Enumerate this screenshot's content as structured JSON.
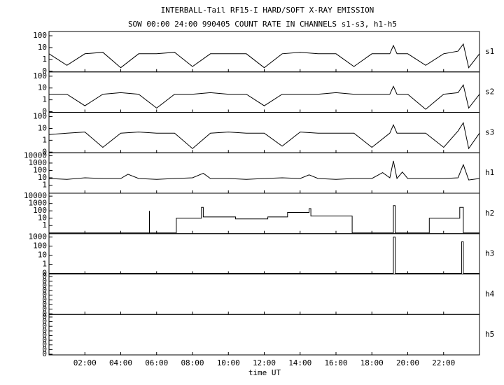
{
  "figure": {
    "title": "INTERBALL-Tail RF15-I HARD/SOFT X-RAY EMISSION",
    "subtitle": "SOW 00:00 24:00 990405  COUNT RATE IN CHANNELS s1-s3, h1-h5",
    "x_label": "time UT",
    "xlim": [
      0,
      24
    ],
    "xticks": [
      {
        "value": 2,
        "label": "02:00"
      },
      {
        "value": 4,
        "label": "04:00"
      },
      {
        "value": 6,
        "label": "06:00"
      },
      {
        "value": 8,
        "label": "08:00"
      },
      {
        "value": 10,
        "label": "10:00"
      },
      {
        "value": 12,
        "label": "12:00"
      },
      {
        "value": 14,
        "label": "14:00"
      },
      {
        "value": 16,
        "label": "16:00"
      },
      {
        "value": 18,
        "label": "18:00"
      },
      {
        "value": 20,
        "label": "20:00"
      },
      {
        "value": 22,
        "label": "22:00"
      }
    ]
  },
  "chart_data": [
    {
      "type": "line",
      "label": "s1",
      "yscale": "symlog",
      "ylim": [
        0,
        200
      ],
      "yticks": [
        0,
        1,
        10,
        100
      ],
      "color": "#000000",
      "x": [
        0,
        1,
        2,
        3,
        4,
        5,
        6,
        7,
        8,
        9,
        10,
        11,
        12,
        13,
        14,
        15,
        16,
        17,
        18,
        19,
        19.2,
        19.4,
        20,
        21,
        22,
        22.8,
        23.1,
        23.4,
        24
      ],
      "values": [
        3,
        0.5,
        3,
        4,
        0.3,
        3,
        3,
        4,
        0.4,
        3,
        3,
        3,
        0.3,
        3,
        4,
        3,
        3,
        0.4,
        3,
        3,
        15,
        3,
        3,
        0.5,
        3,
        5,
        20,
        0.3,
        3
      ]
    },
    {
      "type": "line",
      "label": "s2",
      "yscale": "symlog",
      "ylim": [
        0,
        200
      ],
      "yticks": [
        0,
        1,
        10,
        100
      ],
      "color": "#000000",
      "x": [
        0,
        1,
        2,
        3,
        4,
        5,
        6,
        7,
        8,
        9,
        10,
        11,
        12,
        13,
        14,
        15,
        16,
        17,
        18,
        19,
        19.2,
        19.4,
        20,
        21,
        22,
        22.8,
        23.1,
        23.4,
        24
      ],
      "values": [
        3,
        3,
        0.5,
        3,
        4,
        3,
        0.3,
        3,
        3,
        4,
        3,
        3,
        0.5,
        3,
        3,
        3,
        4,
        3,
        3,
        3,
        14,
        3,
        3,
        0.2,
        3,
        4,
        18,
        0.3,
        3
      ]
    },
    {
      "type": "line",
      "label": "s3",
      "yscale": "symlog",
      "ylim": [
        0,
        200
      ],
      "yticks": [
        0,
        1,
        10,
        100
      ],
      "color": "#000000",
      "x": [
        0,
        1,
        2,
        3,
        4,
        5,
        6,
        7,
        8,
        9,
        10,
        11,
        12,
        13,
        14,
        15,
        16,
        17,
        18,
        19,
        19.2,
        19.4,
        20,
        21,
        22,
        22.8,
        23.1,
        23.4,
        24
      ],
      "values": [
        3,
        4,
        5,
        0.4,
        4,
        5,
        4,
        4,
        0.3,
        4,
        5,
        4,
        4,
        0.5,
        5,
        4,
        4,
        4,
        0.4,
        4,
        20,
        4,
        4,
        4,
        0.4,
        6,
        30,
        0.3,
        4
      ]
    },
    {
      "type": "line",
      "label": "h1",
      "yscale": "symlog",
      "ylim": [
        0,
        20000
      ],
      "yticks": [
        1,
        10,
        100,
        1000,
        10000
      ],
      "color": "#000000",
      "x": [
        0,
        1,
        2,
        3,
        4,
        4.4,
        5,
        6,
        7,
        8,
        8.6,
        9,
        10,
        11,
        12,
        13,
        14,
        14.5,
        15,
        16,
        17,
        18,
        18.6,
        19,
        19.2,
        19.4,
        19.7,
        20,
        21,
        22,
        22.8,
        23.1,
        23.4,
        24
      ],
      "values": [
        8,
        6,
        10,
        8,
        8,
        30,
        8,
        6,
        8,
        10,
        40,
        8,
        8,
        6,
        8,
        10,
        8,
        25,
        8,
        6,
        8,
        8,
        50,
        10,
        2000,
        8,
        60,
        8,
        8,
        8,
        10,
        600,
        5,
        8
      ]
    },
    {
      "type": "line",
      "label": "h2",
      "yscale": "symlog",
      "ylim": [
        0,
        20000
      ],
      "yticks": [
        1,
        10,
        100,
        1000,
        10000
      ],
      "color": "#000000",
      "x": [
        0,
        5.6,
        5.6,
        5.6,
        7.1,
        7.1,
        8.5,
        8.5,
        8.6,
        8.6,
        10.4,
        10.4,
        12.2,
        12.2,
        13.3,
        13.3,
        14.5,
        14.5,
        14.6,
        14.6,
        16.9,
        16.9,
        19.2,
        19.2,
        19.3,
        19.3,
        21.2,
        21.2,
        22.9,
        22.9,
        23.1,
        23.1,
        24
      ],
      "values": [
        0,
        0,
        100,
        0,
        0,
        10,
        10,
        300,
        300,
        15,
        15,
        8,
        8,
        15,
        15,
        60,
        60,
        200,
        200,
        20,
        20,
        0,
        0,
        500,
        500,
        0,
        0,
        10,
        10,
        300,
        300,
        0,
        0
      ]
    },
    {
      "type": "line",
      "label": "h3",
      "yscale": "symlog",
      "ylim": [
        0,
        2000
      ],
      "yticks": [
        0,
        1,
        10,
        100,
        1000
      ],
      "color": "#000000",
      "x": [
        0,
        19.2,
        19.2,
        19.3,
        19.3,
        23.0,
        23.0,
        23.1,
        23.1,
        24
      ],
      "values": [
        0,
        0,
        1000,
        1000,
        0,
        0,
        300,
        300,
        0,
        0
      ]
    },
    {
      "type": "line",
      "label": "h4",
      "yscale": "linear",
      "ylim": [
        0,
        0.42
      ],
      "yticks": [
        {
          "value": 0,
          "label": "0"
        },
        {
          "value": 0.05,
          "label": "0"
        },
        {
          "value": 0.1,
          "label": "0"
        },
        {
          "value": 0.15,
          "label": "0"
        },
        {
          "value": 0.2,
          "label": "0"
        },
        {
          "value": 0.25,
          "label": "0"
        },
        {
          "value": 0.3,
          "label": "0"
        },
        {
          "value": 0.35,
          "label": "0"
        },
        {
          "value": 0.4,
          "label": "0"
        }
      ]
    },
    {
      "type": "line",
      "label": "h5",
      "yscale": "linear",
      "ylim": [
        0,
        0.42
      ],
      "yticks": [
        {
          "value": 0,
          "label": "0"
        },
        {
          "value": 0.05,
          "label": "0"
        },
        {
          "value": 0.1,
          "label": "0"
        },
        {
          "value": 0.15,
          "label": "0"
        },
        {
          "value": 0.2,
          "label": "0"
        },
        {
          "value": 0.25,
          "label": "0"
        },
        {
          "value": 0.3,
          "label": "0"
        },
        {
          "value": 0.35,
          "label": "0"
        },
        {
          "value": 0.4,
          "label": "0"
        }
      ]
    }
  ]
}
